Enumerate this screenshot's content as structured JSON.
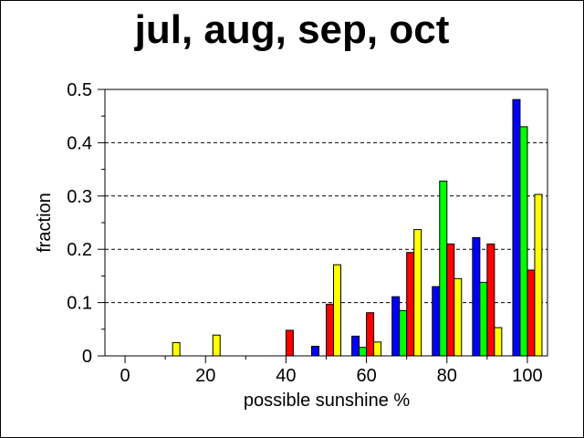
{
  "chart_data": {
    "type": "bar",
    "title": "jul, aug, sep, oct",
    "xlabel": "possible sunshine %",
    "ylabel": "fraction",
    "x": [
      10,
      20,
      30,
      40,
      50,
      60,
      70,
      80,
      90,
      100
    ],
    "xlim": [
      -5,
      105
    ],
    "ylim": [
      0,
      0.5
    ],
    "xticks": [
      "0",
      "20",
      "40",
      "60",
      "80",
      "100"
    ],
    "yticks": [
      "0",
      "0.1",
      "0.2",
      "0.3",
      "0.4",
      "0.5"
    ],
    "grid": "horizontal dashed",
    "legend": "none",
    "colors": [
      "#0000ff",
      "#00ff00",
      "#ff0000",
      "#ffff00"
    ],
    "series": [
      {
        "values": [
          0,
          0,
          0,
          0,
          0.018,
          0.037,
          0.111,
          0.13,
          0.222,
          0.481
        ]
      },
      {
        "values": [
          0,
          0,
          0,
          0,
          0,
          0.016,
          0.085,
          0.328,
          0.138,
          0.43
        ]
      },
      {
        "values": [
          0,
          0,
          0,
          0.048,
          0.097,
          0.081,
          0.194,
          0.21,
          0.21,
          0.161
        ]
      },
      {
        "values": [
          0.025,
          0.039,
          0,
          0,
          0.171,
          0.026,
          0.237,
          0.145,
          0.053,
          0.303
        ]
      }
    ]
  }
}
